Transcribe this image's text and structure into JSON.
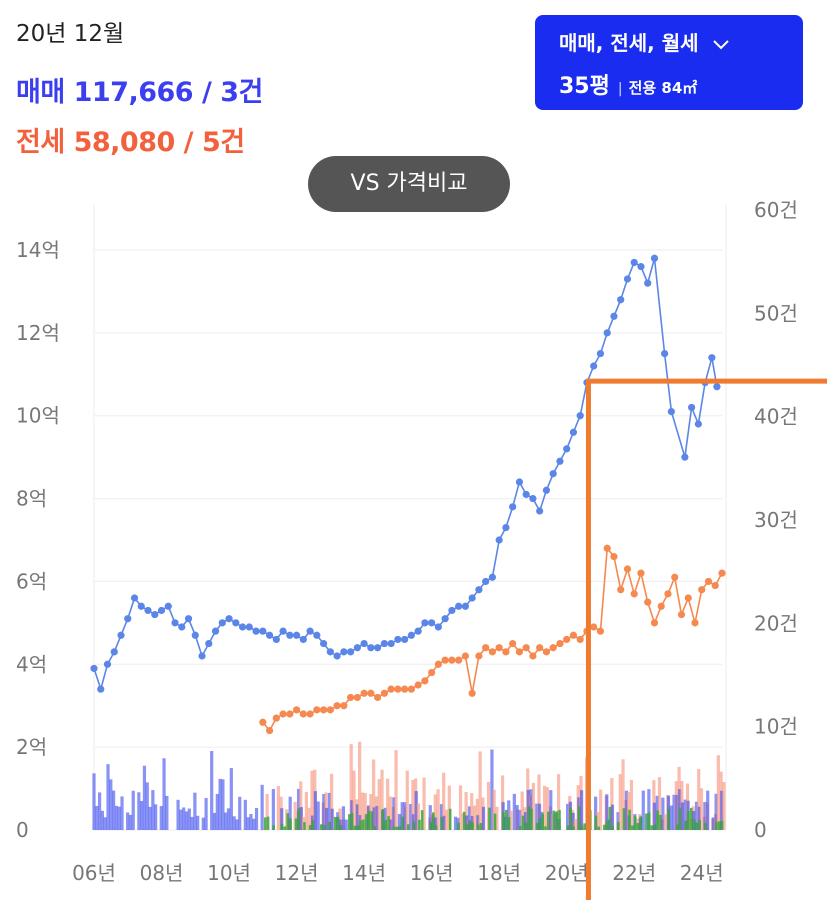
{
  "header": {
    "date": "20년 12월",
    "sale_label": "매매",
    "sale_value": "117,666 / 3건",
    "jeonse_label": "전세",
    "jeonse_value": "58,080 / 5건"
  },
  "filter": {
    "types": "매매, 전세, 월세",
    "size": "35평",
    "area": "전용 84㎡"
  },
  "vs_button": "VS 가격비교",
  "colors": {
    "sale": "#5b86e8",
    "jeonse": "#f6894f",
    "sale_volume": "#3b49ee",
    "jeonse_volume": "#f7a08a",
    "rent_volume": "#3aa83a",
    "marker": "#ee7b2f"
  },
  "chart_data": {
    "type": "line",
    "x_ticks": [
      "06년",
      "08년",
      "10년",
      "12년",
      "14년",
      "16년",
      "18년",
      "20년",
      "22년",
      "24년"
    ],
    "y_left_ticks": [
      "0",
      "2억",
      "4억",
      "6억",
      "8억",
      "10억",
      "12억",
      "14억"
    ],
    "y_right_ticks": [
      "0",
      "10건",
      "20건",
      "30건",
      "40건",
      "50건",
      "60건"
    ],
    "y_left_range": [
      0,
      14
    ],
    "y_right_range": [
      0,
      60
    ],
    "x_range": [
      2006,
      2024.6
    ],
    "grid": true,
    "series": [
      {
        "key": "sale",
        "kind": "line",
        "axis": "left",
        "points": [
          [
            2006.0,
            3.9
          ],
          [
            2006.2,
            3.4
          ],
          [
            2006.4,
            4.0
          ],
          [
            2006.6,
            4.3
          ],
          [
            2006.8,
            4.7
          ],
          [
            2007.0,
            5.1
          ],
          [
            2007.2,
            5.6
          ],
          [
            2007.4,
            5.4
          ],
          [
            2007.6,
            5.3
          ],
          [
            2007.8,
            5.2
          ],
          [
            2008.0,
            5.3
          ],
          [
            2008.2,
            5.4
          ],
          [
            2008.4,
            5.0
          ],
          [
            2008.6,
            4.9
          ],
          [
            2008.8,
            5.1
          ],
          [
            2009.0,
            4.7
          ],
          [
            2009.2,
            4.2
          ],
          [
            2009.4,
            4.5
          ],
          [
            2009.6,
            4.8
          ],
          [
            2009.8,
            5.0
          ],
          [
            2010.0,
            5.1
          ],
          [
            2010.2,
            5.0
          ],
          [
            2010.4,
            4.9
          ],
          [
            2010.6,
            4.9
          ],
          [
            2010.8,
            4.8
          ],
          [
            2011.0,
            4.8
          ],
          [
            2011.2,
            4.7
          ],
          [
            2011.4,
            4.6
          ],
          [
            2011.6,
            4.8
          ],
          [
            2011.8,
            4.7
          ],
          [
            2012.0,
            4.7
          ],
          [
            2012.2,
            4.6
          ],
          [
            2012.4,
            4.8
          ],
          [
            2012.6,
            4.7
          ],
          [
            2012.8,
            4.5
          ],
          [
            2013.0,
            4.3
          ],
          [
            2013.2,
            4.2
          ],
          [
            2013.4,
            4.3
          ],
          [
            2013.6,
            4.3
          ],
          [
            2013.8,
            4.4
          ],
          [
            2014.0,
            4.5
          ],
          [
            2014.2,
            4.4
          ],
          [
            2014.4,
            4.4
          ],
          [
            2014.6,
            4.5
          ],
          [
            2014.8,
            4.5
          ],
          [
            2015.0,
            4.6
          ],
          [
            2015.2,
            4.6
          ],
          [
            2015.4,
            4.7
          ],
          [
            2015.6,
            4.8
          ],
          [
            2015.8,
            5.0
          ],
          [
            2016.0,
            5.0
          ],
          [
            2016.2,
            4.9
          ],
          [
            2016.4,
            5.1
          ],
          [
            2016.6,
            5.3
          ],
          [
            2016.8,
            5.4
          ],
          [
            2017.0,
            5.4
          ],
          [
            2017.2,
            5.6
          ],
          [
            2017.4,
            5.8
          ],
          [
            2017.6,
            6.0
          ],
          [
            2017.8,
            6.1
          ],
          [
            2018.0,
            7.0
          ],
          [
            2018.2,
            7.3
          ],
          [
            2018.4,
            7.8
          ],
          [
            2018.6,
            8.4
          ],
          [
            2018.8,
            8.1
          ],
          [
            2019.0,
            8.0
          ],
          [
            2019.2,
            7.7
          ],
          [
            2019.4,
            8.2
          ],
          [
            2019.6,
            8.6
          ],
          [
            2019.8,
            8.9
          ],
          [
            2020.0,
            9.2
          ],
          [
            2020.2,
            9.6
          ],
          [
            2020.4,
            10.0
          ],
          [
            2020.6,
            10.8
          ],
          [
            2020.8,
            11.2
          ],
          [
            2021.0,
            11.5
          ],
          [
            2021.2,
            12.0
          ],
          [
            2021.4,
            12.4
          ],
          [
            2021.6,
            12.8
          ],
          [
            2021.8,
            13.3
          ],
          [
            2022.0,
            13.7
          ],
          [
            2022.2,
            13.6
          ],
          [
            2022.4,
            13.2
          ],
          [
            2022.6,
            13.8
          ],
          [
            2022.9,
            11.5
          ],
          [
            2023.1,
            10.1
          ],
          [
            2023.5,
            9.0
          ],
          [
            2023.7,
            10.2
          ],
          [
            2023.9,
            9.8
          ],
          [
            2024.1,
            10.8
          ],
          [
            2024.3,
            11.4
          ],
          [
            2024.45,
            10.7
          ]
        ]
      },
      {
        "key": "jeonse",
        "kind": "line",
        "axis": "left",
        "points": [
          [
            2011.0,
            2.6
          ],
          [
            2011.2,
            2.4
          ],
          [
            2011.4,
            2.7
          ],
          [
            2011.6,
            2.8
          ],
          [
            2011.8,
            2.8
          ],
          [
            2012.0,
            2.9
          ],
          [
            2012.2,
            2.8
          ],
          [
            2012.4,
            2.8
          ],
          [
            2012.6,
            2.9
          ],
          [
            2012.8,
            2.9
          ],
          [
            2013.0,
            2.9
          ],
          [
            2013.2,
            3.0
          ],
          [
            2013.4,
            3.0
          ],
          [
            2013.6,
            3.2
          ],
          [
            2013.8,
            3.2
          ],
          [
            2014.0,
            3.3
          ],
          [
            2014.2,
            3.3
          ],
          [
            2014.4,
            3.2
          ],
          [
            2014.6,
            3.3
          ],
          [
            2014.8,
            3.4
          ],
          [
            2015.0,
            3.4
          ],
          [
            2015.2,
            3.4
          ],
          [
            2015.4,
            3.4
          ],
          [
            2015.6,
            3.5
          ],
          [
            2015.8,
            3.6
          ],
          [
            2016.0,
            3.8
          ],
          [
            2016.2,
            4.0
          ],
          [
            2016.4,
            4.1
          ],
          [
            2016.6,
            4.1
          ],
          [
            2016.8,
            4.1
          ],
          [
            2017.0,
            4.2
          ],
          [
            2017.2,
            3.3
          ],
          [
            2017.4,
            4.2
          ],
          [
            2017.6,
            4.4
          ],
          [
            2017.8,
            4.3
          ],
          [
            2018.0,
            4.4
          ],
          [
            2018.2,
            4.3
          ],
          [
            2018.4,
            4.5
          ],
          [
            2018.6,
            4.3
          ],
          [
            2018.8,
            4.4
          ],
          [
            2019.0,
            4.2
          ],
          [
            2019.2,
            4.4
          ],
          [
            2019.4,
            4.3
          ],
          [
            2019.6,
            4.4
          ],
          [
            2019.8,
            4.5
          ],
          [
            2020.0,
            4.6
          ],
          [
            2020.2,
            4.7
          ],
          [
            2020.4,
            4.6
          ],
          [
            2020.6,
            4.8
          ],
          [
            2020.8,
            4.9
          ],
          [
            2021.0,
            4.8
          ],
          [
            2021.2,
            6.8
          ],
          [
            2021.4,
            6.6
          ],
          [
            2021.6,
            5.8
          ],
          [
            2021.8,
            6.3
          ],
          [
            2022.0,
            5.7
          ],
          [
            2022.2,
            6.2
          ],
          [
            2022.4,
            5.5
          ],
          [
            2022.6,
            5.0
          ],
          [
            2022.8,
            5.4
          ],
          [
            2023.0,
            5.7
          ],
          [
            2023.2,
            6.1
          ],
          [
            2023.4,
            5.2
          ],
          [
            2023.6,
            5.6
          ],
          [
            2023.8,
            5.0
          ],
          [
            2024.0,
            5.8
          ],
          [
            2024.2,
            6.0
          ],
          [
            2024.4,
            5.9
          ],
          [
            2024.6,
            6.2
          ]
        ]
      }
    ],
    "volume_note": "trade-count bars on right axis (건)",
    "marker": {
      "type": "corner-bracket",
      "x": 2021.0,
      "y_left": 10.4
    }
  }
}
